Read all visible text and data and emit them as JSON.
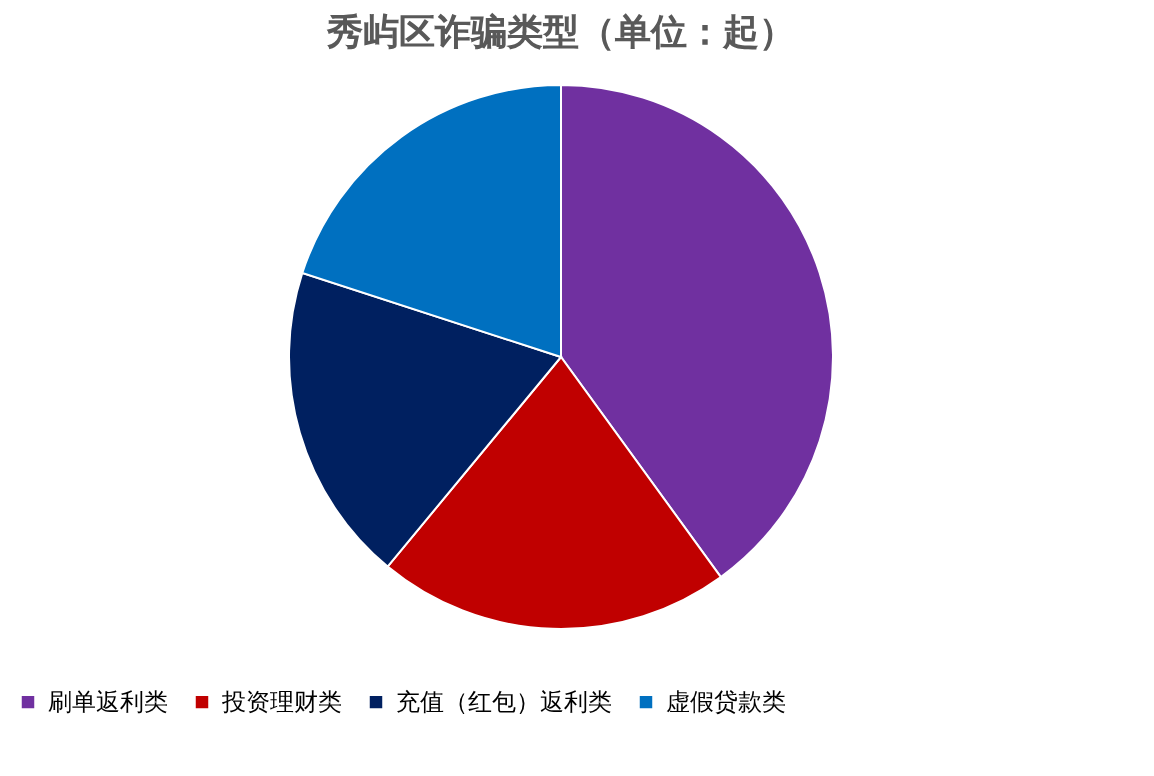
{
  "chart_data": {
    "type": "pie",
    "title": "秀屿区诈骗类型（单位：起）",
    "categories": [
      "刷单返利类",
      "投资理财类",
      "充值（红包）返利类",
      "虚假贷款类"
    ],
    "values": [
      40,
      21,
      19,
      20
    ],
    "colors": [
      "#7030a0",
      "#c00000",
      "#002060",
      "#0070c0"
    ],
    "legend": "bottom"
  }
}
